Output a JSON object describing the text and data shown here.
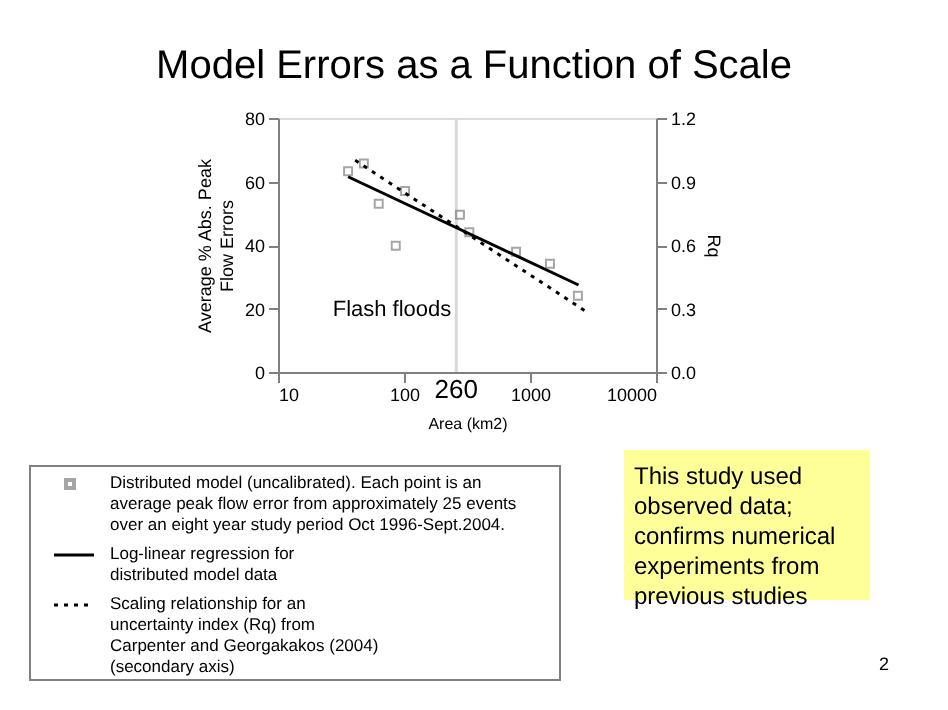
{
  "chart_data": {
    "type": "scatter",
    "title": "Model Errors as a Function of Scale",
    "xlabel": "Area (km2)",
    "ylabel": "Average %  Abs. Peak Flow Errors",
    "y2label": "Rq",
    "log": "x",
    "xlim": [
      10,
      10000
    ],
    "xticks": [
      10,
      100,
      1000,
      10000
    ],
    "ylim": [
      0,
      80
    ],
    "yticks": [
      0,
      20,
      40,
      60,
      80
    ],
    "y2lim": [
      0,
      1.2
    ],
    "y2ticks": [
      {
        "value": 0,
        "label": "0.0"
      },
      0.3,
      0.6,
      0.9,
      1.2
    ],
    "grid": false,
    "legend": "bottom",
    "series": [
      {
        "name": "Distributed model (uncalibrated). Each point is an average peak flow error from approximately 25 events over an eight year study period Oct 1996-Sept.2004.",
        "marker": "square",
        "color": "#808080",
        "x": [
          36,
          48,
          63,
          86,
          102,
          278,
          330,
          775,
          1440,
          2400
        ],
        "values": [
          63.2,
          65.7,
          53,
          39.8,
          57,
          49.5,
          44,
          37.9,
          34.1,
          24
        ]
      },
      {
        "name": "Log-linear regression for distributed model data",
        "type": "line",
        "line_style": "solid",
        "color": "#000000",
        "x": [
          36,
          2430
        ],
        "values": [
          61.5,
          27.4
        ]
      },
      {
        "name": "Scaling relationship for an uncertainty index (Rq) from Carpenter and Georgakakos (2004) (secondary axis)",
        "type": "line",
        "line_style": "dotted",
        "axis": "y2",
        "color": "#000000",
        "x": [
          41,
          2880
        ],
        "values": [
          1.0,
          0.28
        ]
      }
    ],
    "ref_lines": [
      {
        "axis": "x",
        "value": 260,
        "label": "260",
        "color": "#d9d9d9"
      }
    ],
    "annotations": [
      "Flash floods",
      "This study used observed data; confirms numerical experiments from previous studies",
      "2"
    ]
  }
}
